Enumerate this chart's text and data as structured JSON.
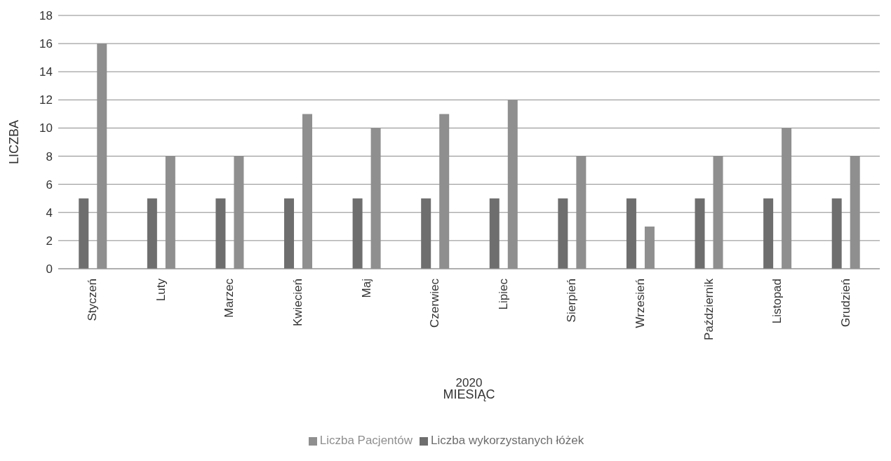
{
  "chart_data": {
    "type": "bar",
    "categories": [
      "Styczeń",
      "Luty",
      "Marzec",
      "Kwiecień",
      "Maj",
      "Czerwiec",
      "Lipiec",
      "Sierpień",
      "Wrzesień",
      "Październik",
      "Listopad",
      "Grudzień"
    ],
    "series": [
      {
        "name": "Liczba wykorzystanych łóżek",
        "color": "#6e6e6e",
        "values": [
          5,
          5,
          5,
          5,
          5,
          5,
          5,
          5,
          5,
          5,
          5,
          5
        ]
      },
      {
        "name": "Liczba Pacjentów",
        "color": "#8f8f8f",
        "values": [
          16,
          8,
          8,
          11,
          10,
          11,
          12,
          8,
          3,
          8,
          10,
          8
        ]
      }
    ],
    "xlabel": "MIESIĄC",
    "ylabel": "LICZBA",
    "annotations": [
      "2020"
    ],
    "ylim": [
      0,
      18
    ],
    "yticks": [
      0,
      2,
      4,
      6,
      8,
      10,
      12,
      14,
      16,
      18
    ],
    "grid": "y",
    "legend": "bottom"
  }
}
